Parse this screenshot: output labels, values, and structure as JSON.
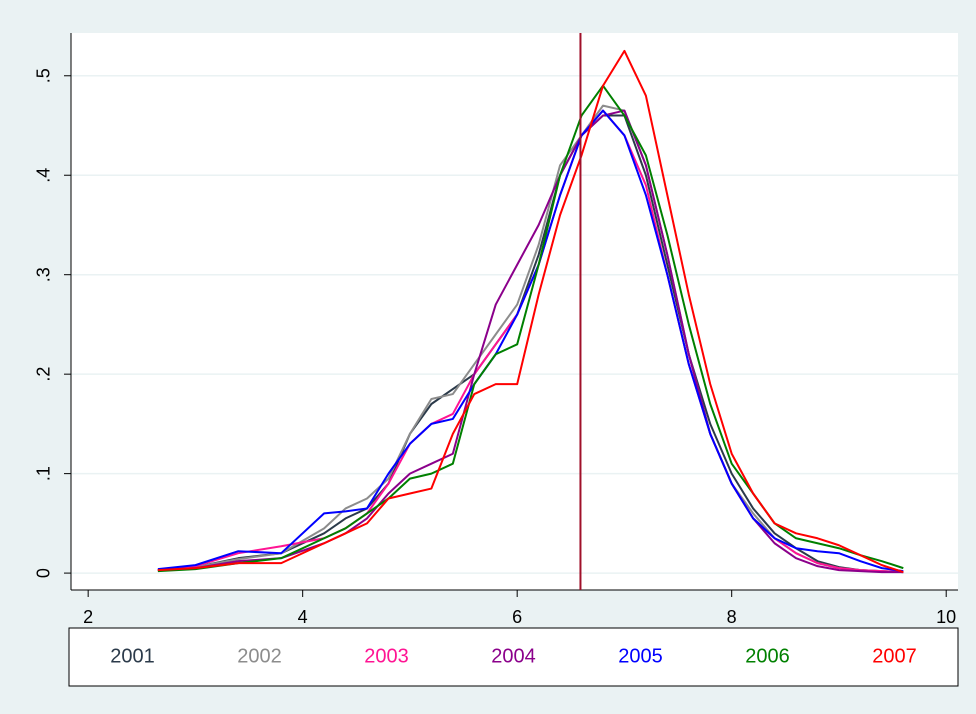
{
  "chart_data": {
    "type": "line",
    "x": [
      2.65,
      3.0,
      3.4,
      3.8,
      4.2,
      4.4,
      4.6,
      4.8,
      5.0,
      5.2,
      5.4,
      5.6,
      5.8,
      6.0,
      6.2,
      6.4,
      6.6,
      6.8,
      7.0,
      7.2,
      7.4,
      7.6,
      7.8,
      8.0,
      8.2,
      8.4,
      8.6,
      8.8,
      9.0,
      9.2,
      9.4,
      9.6
    ],
    "series": [
      {
        "name": "2001",
        "color": "#2b3a4a",
        "values": [
          0.003,
          0.006,
          0.015,
          0.02,
          0.04,
          0.055,
          0.065,
          0.09,
          0.14,
          0.17,
          0.185,
          0.2,
          0.23,
          0.26,
          0.32,
          0.4,
          0.44,
          0.46,
          0.46,
          0.4,
          0.31,
          0.22,
          0.15,
          0.1,
          0.065,
          0.04,
          0.025,
          0.012,
          0.006,
          0.003,
          0.002,
          0.001
        ]
      },
      {
        "name": "2002",
        "color": "#8c8c8c",
        "values": [
          0.003,
          0.006,
          0.014,
          0.02,
          0.045,
          0.065,
          0.075,
          0.095,
          0.14,
          0.175,
          0.18,
          0.21,
          0.24,
          0.27,
          0.33,
          0.41,
          0.44,
          0.47,
          0.465,
          0.41,
          0.32,
          0.22,
          0.14,
          0.09,
          0.06,
          0.035,
          0.02,
          0.01,
          0.005,
          0.003,
          0.002,
          0.001
        ]
      },
      {
        "name": "2003",
        "color": "#ff1493",
        "values": [
          0.003,
          0.007,
          0.02,
          0.027,
          0.035,
          0.045,
          0.06,
          0.09,
          0.13,
          0.15,
          0.16,
          0.2,
          0.23,
          0.26,
          0.31,
          0.38,
          0.44,
          0.465,
          0.44,
          0.39,
          0.3,
          0.21,
          0.14,
          0.09,
          0.055,
          0.035,
          0.02,
          0.01,
          0.005,
          0.003,
          0.002,
          0.001
        ]
      },
      {
        "name": "2004",
        "color": "#8b008b",
        "values": [
          0.003,
          0.005,
          0.012,
          0.015,
          0.03,
          0.04,
          0.055,
          0.08,
          0.1,
          0.11,
          0.12,
          0.2,
          0.27,
          0.31,
          0.35,
          0.4,
          0.44,
          0.46,
          0.465,
          0.41,
          0.32,
          0.22,
          0.14,
          0.09,
          0.055,
          0.03,
          0.015,
          0.007,
          0.003,
          0.002,
          0.001,
          0.001
        ]
      },
      {
        "name": "2005",
        "color": "#0000ff",
        "values": [
          0.004,
          0.008,
          0.022,
          0.02,
          0.06,
          0.062,
          0.065,
          0.1,
          0.13,
          0.15,
          0.155,
          0.19,
          0.22,
          0.26,
          0.31,
          0.38,
          0.44,
          0.465,
          0.44,
          0.38,
          0.3,
          0.21,
          0.14,
          0.09,
          0.055,
          0.035,
          0.025,
          0.022,
          0.02,
          0.012,
          0.005,
          0.002
        ]
      },
      {
        "name": "2006",
        "color": "#008000",
        "values": [
          0.002,
          0.004,
          0.01,
          0.015,
          0.035,
          0.045,
          0.06,
          0.075,
          0.095,
          0.1,
          0.11,
          0.19,
          0.22,
          0.23,
          0.31,
          0.4,
          0.46,
          0.49,
          0.46,
          0.42,
          0.34,
          0.25,
          0.17,
          0.11,
          0.08,
          0.05,
          0.035,
          0.03,
          0.025,
          0.018,
          0.012,
          0.005
        ]
      },
      {
        "name": "2007",
        "color": "#ff0000",
        "values": [
          0.003,
          0.005,
          0.01,
          0.01,
          0.03,
          0.04,
          0.05,
          0.075,
          0.08,
          0.085,
          0.14,
          0.18,
          0.19,
          0.19,
          0.28,
          0.36,
          0.42,
          0.49,
          0.525,
          0.48,
          0.38,
          0.28,
          0.19,
          0.12,
          0.08,
          0.05,
          0.04,
          0.035,
          0.028,
          0.018,
          0.008,
          0.001
        ]
      }
    ],
    "xlim": [
      1.84,
      10.11
    ],
    "ylim": [
      -0.017,
      0.543
    ],
    "xticks": [
      2,
      4,
      6,
      8,
      10
    ],
    "yticks": [
      0,
      {
        "value": 0.1,
        "label": ".1"
      },
      {
        "value": 0.2,
        "label": ".2"
      },
      {
        "value": 0.3,
        "label": ".3"
      },
      {
        "value": 0.4,
        "label": ".4"
      },
      {
        "value": 0.5,
        "label": ".5"
      }
    ],
    "grid": true,
    "vline": {
      "value": 6.59,
      "color": "#a0102a"
    },
    "legend": "bottom"
  }
}
